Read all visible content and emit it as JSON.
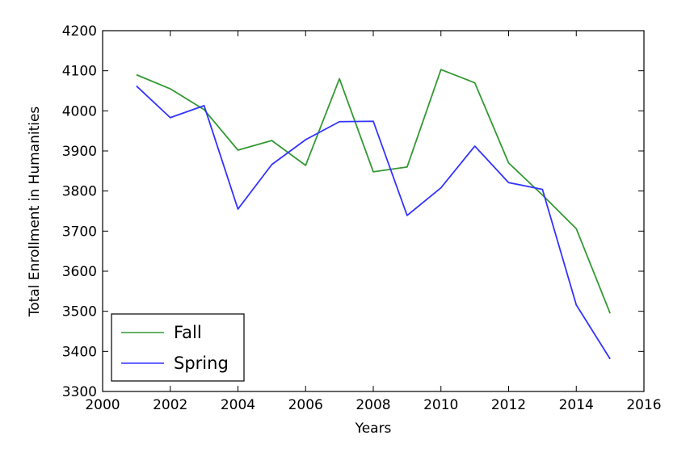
{
  "chart_data": {
    "type": "line",
    "title": "",
    "xlabel": "Years",
    "ylabel": "Total Enrollment in Humanities",
    "xlim": [
      2000,
      2016
    ],
    "ylim": [
      3300,
      4200
    ],
    "xticks": [
      "2000",
      "2002",
      "2004",
      "2006",
      "2008",
      "2010",
      "2012",
      "2014",
      "2016"
    ],
    "yticks": [
      "3300",
      "3400",
      "3500",
      "3600",
      "3700",
      "3800",
      "3900",
      "4000",
      "4100",
      "4200"
    ],
    "grid": false,
    "legend_position": "bottom-left",
    "x": [
      2001,
      2002,
      2003,
      2004,
      2005,
      2006,
      2007,
      2008,
      2009,
      2010,
      2011,
      2012,
      2013,
      2014,
      2015
    ],
    "series": [
      {
        "name": "Fall",
        "color": "#339933",
        "values": [
          4090,
          4055,
          4003,
          3902,
          3926,
          3864,
          4080,
          3848,
          3860,
          4103,
          4070,
          3870,
          3790,
          3706,
          3495
        ]
      },
      {
        "name": "Spring",
        "color": "#3333ff",
        "values": [
          4062,
          3983,
          4013,
          3755,
          3866,
          3928,
          3973,
          3974,
          3739,
          3808,
          3912,
          3821,
          3804,
          3516,
          3381
        ]
      }
    ]
  }
}
